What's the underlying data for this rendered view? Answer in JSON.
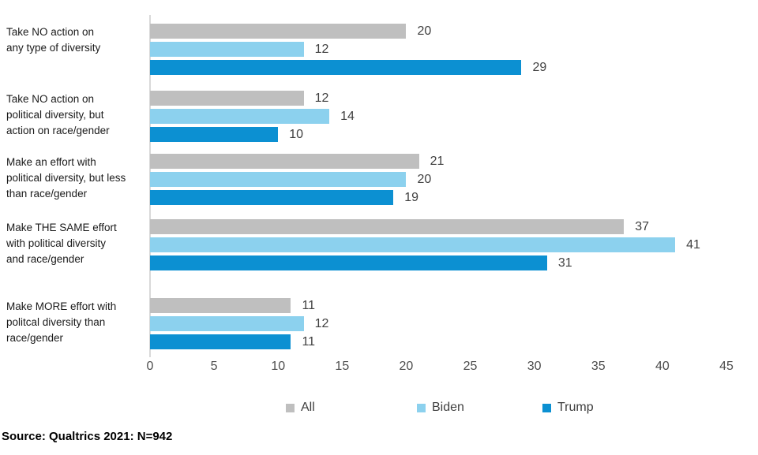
{
  "chart_data": {
    "type": "bar",
    "orientation": "horizontal",
    "title": "",
    "xlabel": "",
    "ylabel": "",
    "xlim": [
      0,
      45
    ],
    "x_ticks": [
      0,
      5,
      10,
      15,
      20,
      25,
      30,
      35,
      40,
      45
    ],
    "grid": false,
    "legend_position": "bottom",
    "categories": [
      [
        "Take NO action on",
        "any type of diversity"
      ],
      [
        "Take NO action on",
        "political diversity, but",
        "action on race/gender"
      ],
      [
        "Make an effort with",
        "political diversity, but less",
        "than race/gender"
      ],
      [
        "Make THE SAME effort",
        "with political diversity",
        "and race/gender"
      ],
      [
        "Make MORE effort with",
        "politcal diversity than",
        "race/gender"
      ]
    ],
    "series": [
      {
        "name": "All",
        "color": "#bfbfbf",
        "values": [
          20,
          12,
          21,
          37,
          11
        ]
      },
      {
        "name": "Biden",
        "color": "#8cd1ee",
        "values": [
          12,
          14,
          20,
          41,
          12
        ]
      },
      {
        "name": "Trump",
        "color": "#0c90d2",
        "values": [
          29,
          10,
          19,
          31,
          11
        ]
      }
    ]
  },
  "colors": {
    "axis_line": "#d9d9d9",
    "category_text": "#1a1a1a",
    "value_text": "#404040",
    "tick_text": "#4d4d4d",
    "legend_text": "#404040"
  },
  "source": "Source: Qualtrics 2021: N=942"
}
